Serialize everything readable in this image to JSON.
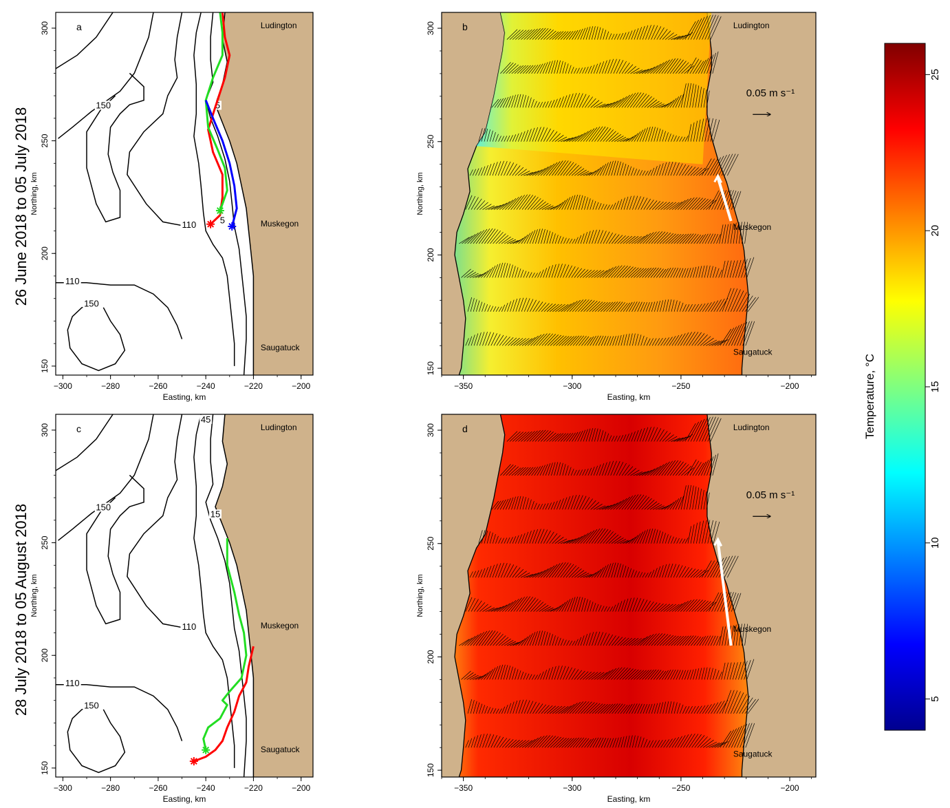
{
  "row_labels": [
    "26 June 2018 to 05 July 2018",
    "28 July 2018 to 05 August 2018"
  ],
  "colorbar": {
    "label": "Temperature, °C",
    "ticks": [
      5,
      10,
      15,
      20,
      25
    ],
    "range": [
      4,
      26
    ],
    "colormap": "jet"
  },
  "colors": {
    "land": "#cfb28b",
    "drifter_red": "#ff0000",
    "drifter_green": "#22dd22",
    "drifter_blue": "#0000ff",
    "vector": "#000000",
    "scale_vector_white": "#ffffff"
  },
  "chart_data": [
    {
      "panel": "a",
      "type": "map-contour-tracks",
      "xlabel": "Easting, km",
      "ylabel": "Northing, km",
      "xlim": [
        -303,
        -195
      ],
      "ylim": [
        146,
        307
      ],
      "xticks": [
        -300,
        -280,
        -260,
        -240,
        -220,
        -200
      ],
      "yticks": [
        150,
        200,
        250,
        300
      ],
      "places": [
        {
          "name": "Ludington",
          "x": -217,
          "y": 300
        },
        {
          "name": "Muskegon",
          "x": -217,
          "y": 212
        },
        {
          "name": "Saugatuck",
          "x": -217,
          "y": 157
        }
      ],
      "contour_labels": [
        {
          "text": "150",
          "x": -283,
          "y": 265
        },
        {
          "text": "110",
          "x": -247,
          "y": 212
        },
        {
          "text": "110",
          "x": -296,
          "y": 187
        },
        {
          "text": "150",
          "x": -288,
          "y": 177
        },
        {
          "text": "5",
          "x": -235,
          "y": 265
        },
        {
          "text": "5",
          "x": -233,
          "y": 214
        }
      ],
      "tracks": [
        {
          "color": "red",
          "points": [
            [
              -233,
              307
            ],
            [
              -232,
              296
            ],
            [
              -230,
              288
            ],
            [
              -232,
              278
            ],
            [
              -236,
              265
            ],
            [
              -239,
              255
            ],
            [
              -237,
              245
            ],
            [
              -233,
              235
            ],
            [
              -233,
              225
            ],
            [
              -234,
              217
            ],
            [
              -238,
              213
            ]
          ]
        },
        {
          "color": "green",
          "points": [
            [
              -234,
              307
            ],
            [
              -233,
              298
            ],
            [
              -233,
              288
            ],
            [
              -237,
              278
            ],
            [
              -240,
              268
            ],
            [
              -239,
              256
            ],
            [
              -235,
              246
            ],
            [
              -232,
              238
            ],
            [
              -231,
              228
            ],
            [
              -233,
              222
            ],
            [
              -234,
              219
            ]
          ]
        },
        {
          "color": "blue",
          "points": [
            [
              -240,
              268
            ],
            [
              -237,
              260
            ],
            [
              -233,
              250
            ],
            [
              -230,
              240
            ],
            [
              -228,
              230
            ],
            [
              -227,
              220
            ],
            [
              -229,
              212
            ]
          ]
        }
      ]
    },
    {
      "panel": "b",
      "type": "map-heatmap-vectors",
      "xlabel": "Easting, km",
      "ylabel": "Northing, km",
      "xlim": [
        -360,
        -188
      ],
      "ylim": [
        147,
        307
      ],
      "xticks": [
        -350,
        -300,
        -250,
        -200
      ],
      "yticks": [
        150,
        200,
        250,
        300
      ],
      "scale_vector": "0.05 m s⁻¹",
      "places": [
        {
          "name": "Ludington",
          "x": -226,
          "y": 300
        },
        {
          "name": "Muskegon",
          "x": -226,
          "y": 211
        },
        {
          "name": "Saugatuck",
          "x": -226,
          "y": 156
        }
      ],
      "transect_northings": [
        295,
        280,
        265,
        250,
        235,
        220,
        205,
        190,
        175,
        160
      ],
      "temperature_regime": "early-summer"
    },
    {
      "panel": "c",
      "type": "map-contour-tracks",
      "xlabel": "Easting, km",
      "ylabel": "Northing, km",
      "xlim": [
        -303,
        -195
      ],
      "ylim": [
        146,
        307
      ],
      "xticks": [
        -300,
        -280,
        -260,
        -240,
        -220,
        -200
      ],
      "yticks": [
        150,
        200,
        250,
        300
      ],
      "places": [
        {
          "name": "Ludington",
          "x": -217,
          "y": 300
        },
        {
          "name": "Muskegon",
          "x": -217,
          "y": 212
        },
        {
          "name": "Saugatuck",
          "x": -217,
          "y": 157
        }
      ],
      "contour_labels": [
        {
          "text": "150",
          "x": -283,
          "y": 265
        },
        {
          "text": "110",
          "x": -247,
          "y": 212
        },
        {
          "text": "110",
          "x": -296,
          "y": 187
        },
        {
          "text": "150",
          "x": -288,
          "y": 177
        },
        {
          "text": "15",
          "x": -236,
          "y": 262
        },
        {
          "text": "45",
          "x": -240,
          "y": 304
        }
      ],
      "tracks": [
        {
          "color": "green",
          "points": [
            [
              -231,
              252
            ],
            [
              -231,
              240
            ],
            [
              -228,
              228
            ],
            [
              -226,
              218
            ],
            [
              -224,
              210
            ],
            [
              -223,
              200
            ],
            [
              -225,
              190
            ],
            [
              -230,
              184
            ],
            [
              -233,
              180
            ],
            [
              -231,
              178
            ],
            [
              -234,
              172
            ],
            [
              -239,
              168
            ],
            [
              -241,
              163
            ],
            [
              -240,
              158
            ]
          ]
        },
        {
          "color": "red",
          "points": [
            [
              -220,
              204
            ],
            [
              -222,
              195
            ],
            [
              -223,
              188
            ],
            [
              -226,
              182
            ],
            [
              -228,
              175
            ],
            [
              -231,
              168
            ],
            [
              -233,
              162
            ],
            [
              -236,
              158
            ],
            [
              -240,
              155
            ],
            [
              -245,
              153
            ]
          ]
        }
      ]
    },
    {
      "panel": "d",
      "type": "map-heatmap-vectors",
      "xlabel": "Easting, km",
      "ylabel": "Northing, km",
      "xlim": [
        -360,
        -188
      ],
      "ylim": [
        147,
        307
      ],
      "xticks": [
        -350,
        -300,
        -250,
        -200
      ],
      "yticks": [
        150,
        200,
        250,
        300
      ],
      "scale_vector": "0.05 m s⁻¹",
      "places": [
        {
          "name": "Ludington",
          "x": -226,
          "y": 300
        },
        {
          "name": "Muskegon",
          "x": -226,
          "y": 211
        },
        {
          "name": "Saugatuck",
          "x": -226,
          "y": 156
        }
      ],
      "transect_northings": [
        295,
        280,
        265,
        250,
        235,
        220,
        205,
        190,
        175,
        160
      ],
      "temperature_regime": "late-summer"
    }
  ]
}
